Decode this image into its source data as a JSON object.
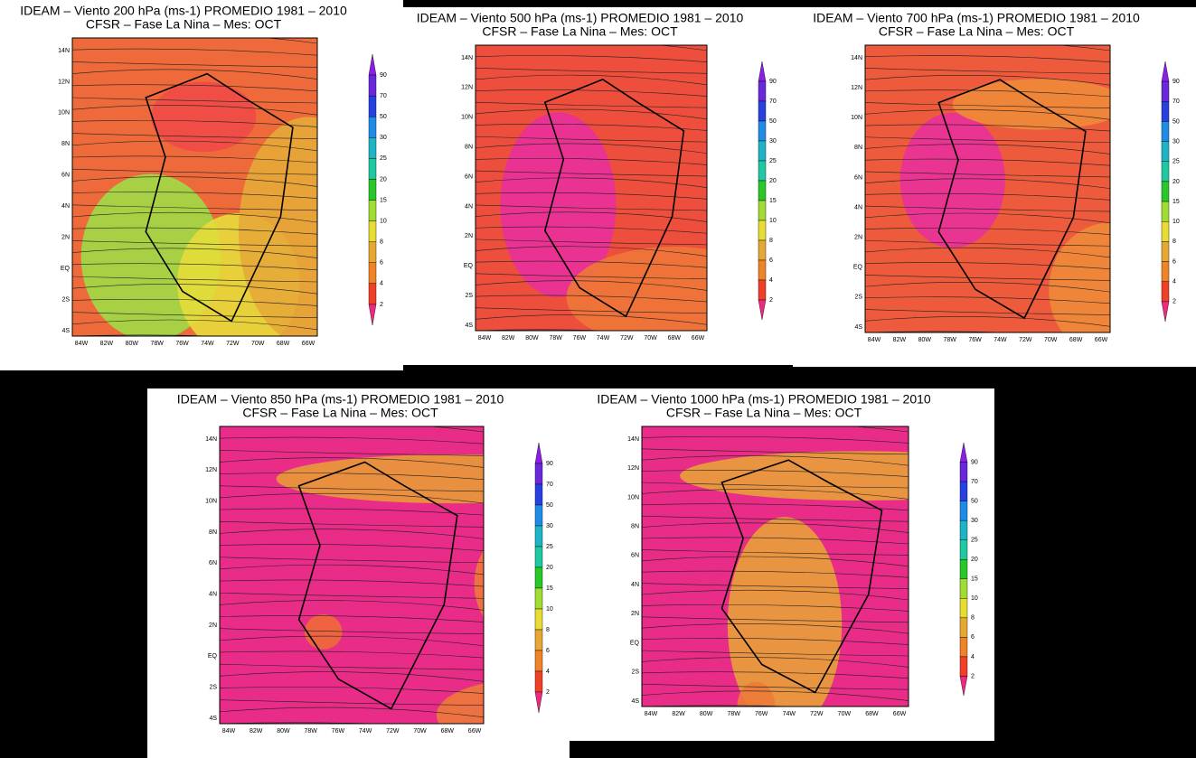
{
  "panels": [
    {
      "title": "IDEAM – Viento 200 hPa (ms-1)  PROMEDIO 1981 – 2010",
      "subtitle": "CFSR – Fase La Nina – Mes: OCT"
    },
    {
      "title": "IDEAM – Viento 500 hPa (ms-1)  PROMEDIO 1981 – 2010",
      "subtitle": "CFSR – Fase La Nina – Mes: OCT"
    },
    {
      "title": "IDEAM – Viento 700 hPa (ms-1)  PROMEDIO 1981 – 2010",
      "subtitle": "CFSR – Fase La Nina – Mes: OCT"
    },
    {
      "title": "IDEAM – Viento 850 hPa (ms-1)  PROMEDIO 1981 – 2010",
      "subtitle": "CFSR – Fase La Nina – Mes: OCT"
    },
    {
      "title": "IDEAM – Viento 1000 hPa (ms-1)  PROMEDIO 1981 – 2010",
      "subtitle": "CFSR – Fase La Nina – Mes: OCT"
    }
  ],
  "lat_labels": [
    "14N",
    "12N",
    "10N",
    "8N",
    "6N",
    "4N",
    "2N",
    "EQ",
    "2S",
    "4S"
  ],
  "lon_labels": [
    "84W",
    "82W",
    "80W",
    "78W",
    "76W",
    "74W",
    "72W",
    "70W",
    "68W",
    "66W"
  ],
  "colorbar_labels": [
    "90",
    "70",
    "50",
    "30",
    "25",
    "20",
    "15",
    "10",
    "8",
    "6",
    "4",
    "2"
  ]
}
